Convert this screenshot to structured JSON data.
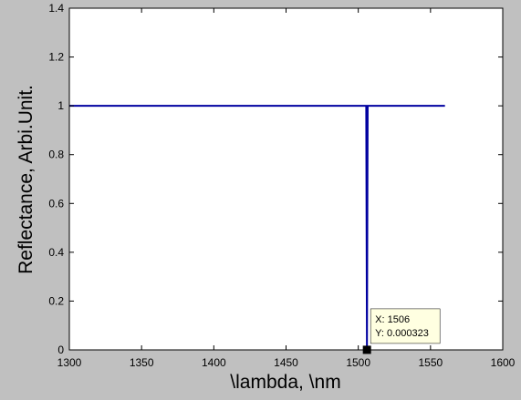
{
  "figure": {
    "background": "#c0c0c0",
    "axes_background": "#ffffff",
    "axes_color": "#000000"
  },
  "chart_data": {
    "type": "line",
    "title": "",
    "xlabel": "\\lambda, \\nm",
    "ylabel": "Reflectance, Arbi.Unit.",
    "xlim": [
      1300,
      1600
    ],
    "ylim": [
      0,
      1.4
    ],
    "xticks": [
      1300,
      1350,
      1400,
      1450,
      1500,
      1550,
      1600
    ],
    "xtick_labels": [
      "1300",
      "1350",
      "1400",
      "1450",
      "1500",
      "1550",
      "1600"
    ],
    "yticks": [
      0,
      0.2,
      0.4,
      0.6,
      0.8,
      1,
      1.2,
      1.4
    ],
    "ytick_labels": [
      "0",
      "0.2",
      "0.4",
      "0.6",
      "0.8",
      "1",
      "1.2",
      "1.4"
    ],
    "grid": false,
    "legend": "none",
    "series": [
      {
        "color": "#0000a0",
        "x": [
          1300,
          1505.5,
          1506,
          1506.5,
          1560
        ],
        "y": [
          1,
          1,
          0.000323,
          1,
          1
        ]
      }
    ],
    "datatip": {
      "x": 1506,
      "y": 0.000323,
      "label_x": "X: 1506",
      "label_y": "Y: 0.000323",
      "background": "#ffffe1"
    }
  }
}
